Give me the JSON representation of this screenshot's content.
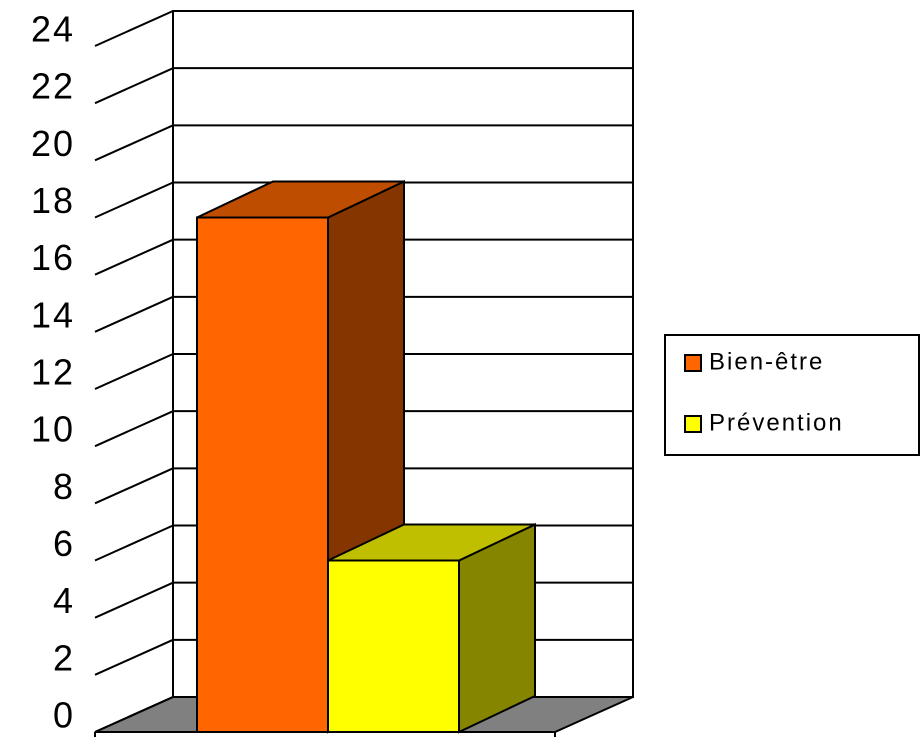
{
  "chart_data": {
    "type": "bar3d",
    "categories": [
      null
    ],
    "series": [
      {
        "name": "Bien-être",
        "color": "#ff6600",
        "values": [
          18
        ]
      },
      {
        "name": "Prévention",
        "color": "#ffff00",
        "values": [
          6
        ]
      }
    ],
    "ylim": [
      0,
      24
    ],
    "yticks": [
      0,
      2,
      4,
      6,
      8,
      10,
      12,
      14,
      16,
      18,
      20,
      22,
      24
    ],
    "grid": true,
    "legend": "right"
  }
}
